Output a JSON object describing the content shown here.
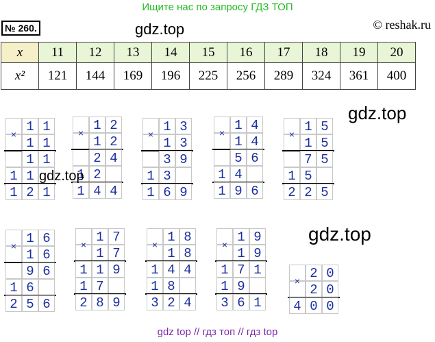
{
  "banner": "Ищите нас по запросу ГДЗ ТОП",
  "task_number": "№ 260.",
  "watermark": "gdz.top",
  "copyright": "© reshak.ru",
  "table": {
    "x_label": "x",
    "x2_label": "x²",
    "x": [
      "11",
      "12",
      "13",
      "14",
      "15",
      "16",
      "17",
      "18",
      "19",
      "20"
    ],
    "x2": [
      "121",
      "144",
      "169",
      "196",
      "225",
      "256",
      "289",
      "324",
      "361",
      "400"
    ]
  },
  "calcs": [
    {
      "a": "11",
      "b": "11",
      "p1": "11",
      "p2": "11",
      "r": "121"
    },
    {
      "a": "12",
      "b": "12",
      "p1": "24",
      "p2": "12",
      "r": "144"
    },
    {
      "a": "13",
      "b": "13",
      "p1": "39",
      "p2": "13",
      "r": "169"
    },
    {
      "a": "14",
      "b": "14",
      "p1": "56",
      "p2": "14",
      "r": "196"
    },
    {
      "a": "15",
      "b": "15",
      "p1": "75",
      "p2": "15",
      "r": "225"
    },
    {
      "a": "16",
      "b": "16",
      "p1": "96",
      "p2": "16",
      "r": "256"
    },
    {
      "a": "17",
      "b": "17",
      "p1": "119",
      "p2": "17",
      "r": "289"
    },
    {
      "a": "18",
      "b": "18",
      "p1": "144",
      "p2": "18",
      "r": "324"
    },
    {
      "a": "19",
      "b": "19",
      "p1": "171",
      "p2": "19",
      "r": "361"
    },
    {
      "a": "20",
      "b": "20",
      "p1": "",
      "p2": "",
      "r": "400"
    }
  ],
  "times_sign": "×",
  "footer": "gdz top  //  гдз топ  //  гдз top"
}
